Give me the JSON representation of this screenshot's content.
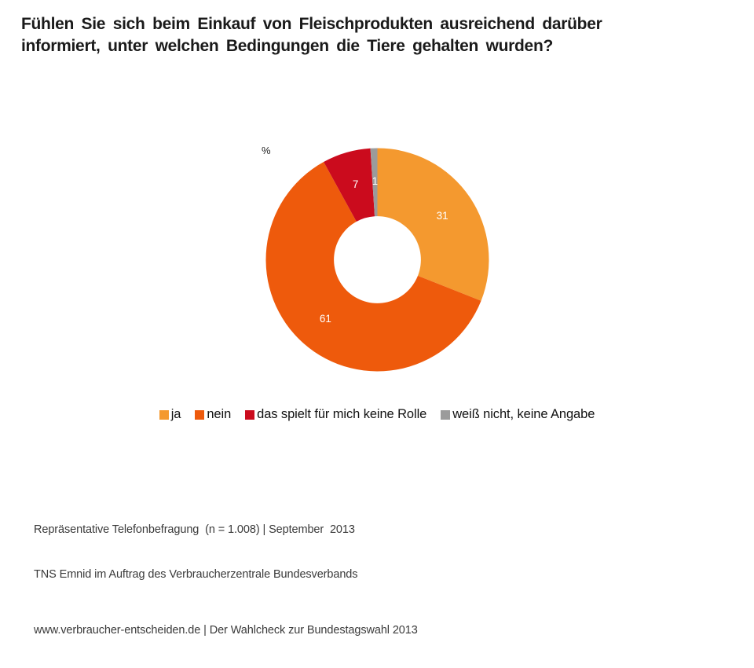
{
  "slide": {
    "title_line1": "Fühlen Sie sich beim Einkauf von Fleischprodukten ausreichend darüber",
    "title_line2": "informiert, unter welchen Bedingungen die Tiere gehalten wurden?"
  },
  "chart_data": {
    "type": "pie",
    "subtype": "donut",
    "title": "Fühlen Sie sich beim Einkauf von Fleischprodukten ausreichend darüber informiert, unter welchen Bedingungen die Tiere gehalten wurden?",
    "unit_label": "%",
    "start_angle_deg": 0,
    "direction": "clockwise",
    "inner_radius_ratio": 0.39,
    "legend_position": "bottom",
    "segments": [
      {
        "label": "ja",
        "value": 31,
        "color": "#F4992F",
        "value_label_color": "#FFFFFF"
      },
      {
        "label": "nein",
        "value": 61,
        "color": "#EE5A0C",
        "value_label_color": "#FFFFFF"
      },
      {
        "label": "das spielt für mich keine Rolle",
        "value": 7,
        "color": "#CB0B1D",
        "value_label_color": "#FFFFFF"
      },
      {
        "label": "weiß nicht, keine Angabe",
        "value": 1,
        "color": "#9B9B9B",
        "value_label_color": "#FFFFFF"
      }
    ]
  },
  "footer": {
    "source_line1": "Repräsentative Telefonbefragung  (n = 1.008) | September  2013",
    "source_line2": "TNS Emnid im Auftrag des Verbraucherzentrale Bundesverbands",
    "website_line": "www.verbraucher-entscheiden.de | Der Wahlcheck zur Bundestagswahl 2013"
  }
}
